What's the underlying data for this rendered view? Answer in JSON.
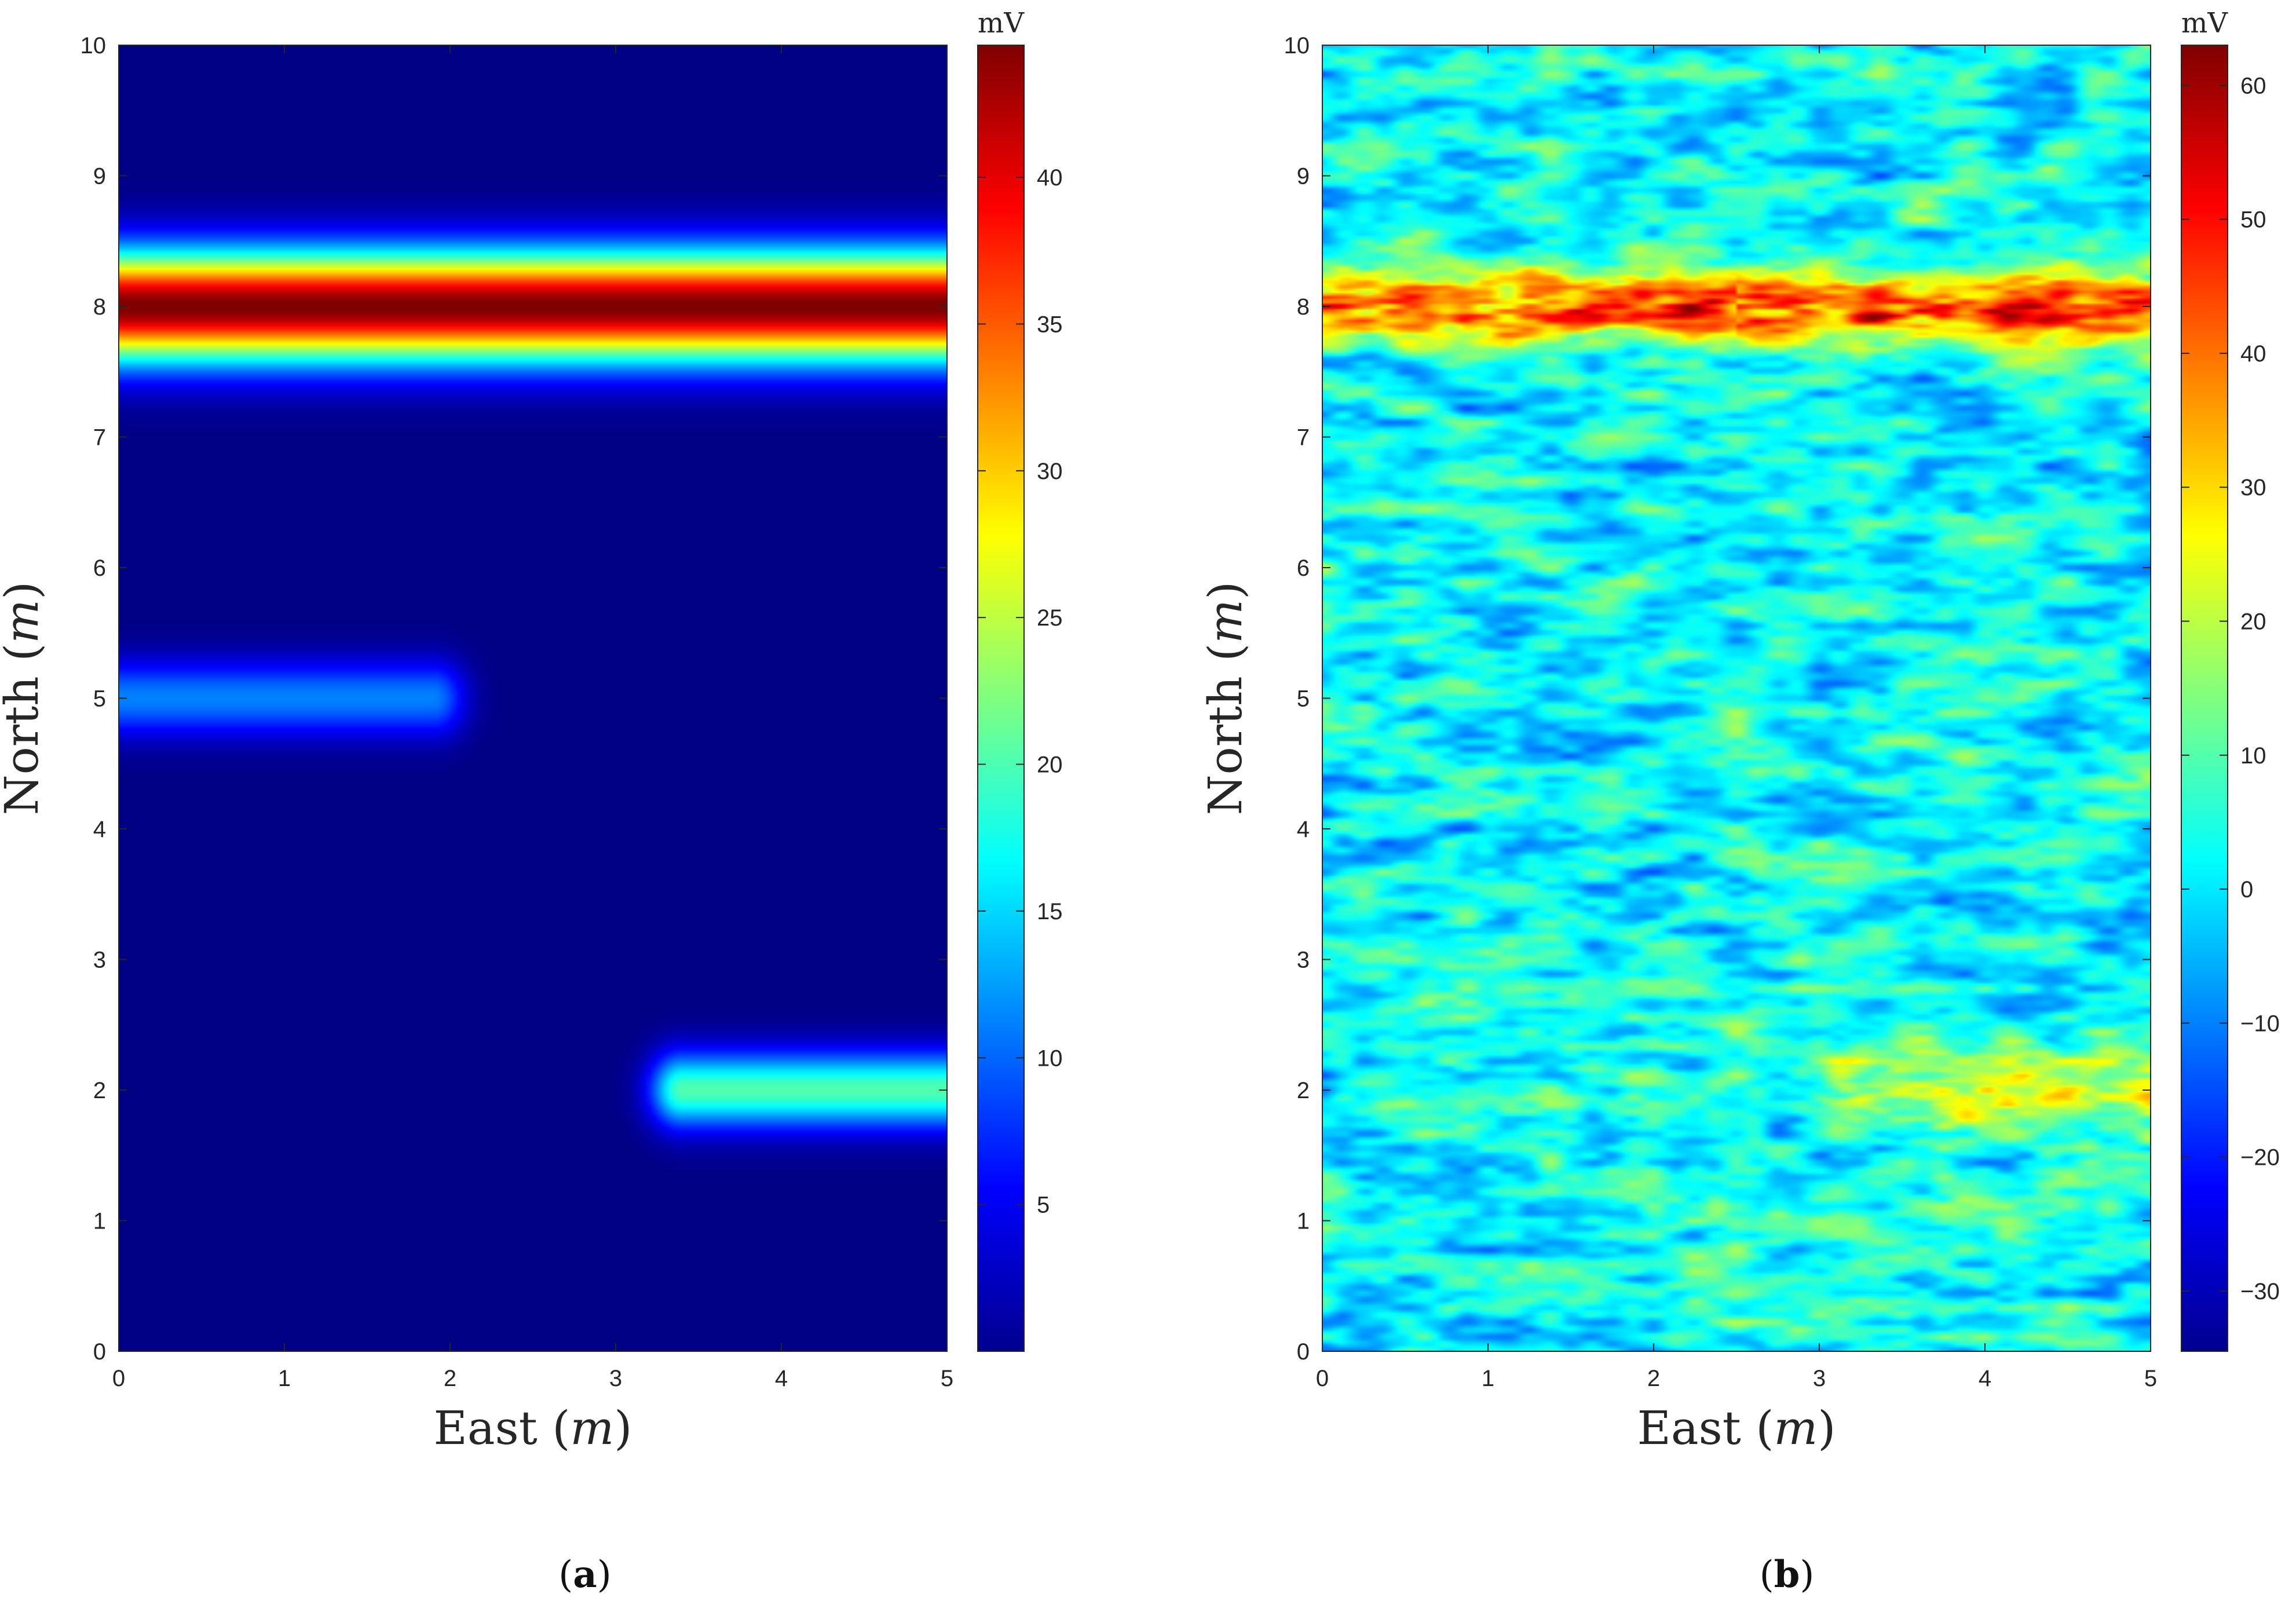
{
  "chart_data": [
    {
      "type": "heatmap",
      "panel_label": "a",
      "xlabel": "East",
      "ylabel": "North",
      "axis_unit": "m",
      "xlim": [
        0,
        5
      ],
      "ylim": [
        0,
        10
      ],
      "xticks": [
        "0",
        "1",
        "2",
        "3",
        "4",
        "5"
      ],
      "yticks": [
        "0",
        "1",
        "2",
        "3",
        "4",
        "5",
        "6",
        "7",
        "8",
        "9",
        "10"
      ],
      "colorbar": {
        "title": "mV",
        "min": 0,
        "max": 44.5,
        "ticks": [
          "5",
          "10",
          "15",
          "20",
          "25",
          "30",
          "35",
          "40"
        ],
        "colormap": "jet"
      },
      "features": [
        {
          "name": "full-width anomaly",
          "east_start": 0,
          "east_end": 5,
          "north": 8.0,
          "peak_mV": 44.5,
          "half_width_m": 0.32
        },
        {
          "name": "west anomaly",
          "east_start": 0,
          "east_end": 1.9,
          "north": 5.0,
          "peak_mV": 11,
          "half_width_m": 0.22
        },
        {
          "name": "east anomaly",
          "east_start": 3.4,
          "east_end": 5,
          "north": 2.0,
          "peak_mV": 20,
          "half_width_m": 0.22
        }
      ]
    },
    {
      "type": "heatmap",
      "panel_label": "b",
      "xlabel": "East",
      "ylabel": "North",
      "axis_unit": "m",
      "xlim": [
        0,
        5
      ],
      "ylim": [
        0,
        10
      ],
      "xticks": [
        "0",
        "1",
        "2",
        "3",
        "4",
        "5"
      ],
      "yticks": [
        "0",
        "1",
        "2",
        "3",
        "4",
        "5",
        "6",
        "7",
        "8",
        "9",
        "10"
      ],
      "colorbar": {
        "title": "mV",
        "min": -34.5,
        "max": 63,
        "ticks": [
          "−30",
          "−20",
          "−10",
          "0",
          "10",
          "20",
          "30",
          "40",
          "50",
          "60"
        ],
        "tick_values": [
          -30,
          -20,
          -10,
          0,
          10,
          20,
          30,
          40,
          50,
          60
        ],
        "colormap": "jet"
      },
      "features": [
        {
          "name": "noisy full-width anomaly",
          "east_start": 0,
          "east_end": 5,
          "north": 8.0,
          "peak_mV": 48,
          "half_width_m": 0.22
        },
        {
          "name": "noisy east anomaly",
          "east_start": 3.2,
          "east_end": 5,
          "north": 2.0,
          "peak_mV": 22,
          "half_width_m": 0.3
        }
      ],
      "background_noise_mV": {
        "mean": 2,
        "std": 9
      }
    }
  ]
}
